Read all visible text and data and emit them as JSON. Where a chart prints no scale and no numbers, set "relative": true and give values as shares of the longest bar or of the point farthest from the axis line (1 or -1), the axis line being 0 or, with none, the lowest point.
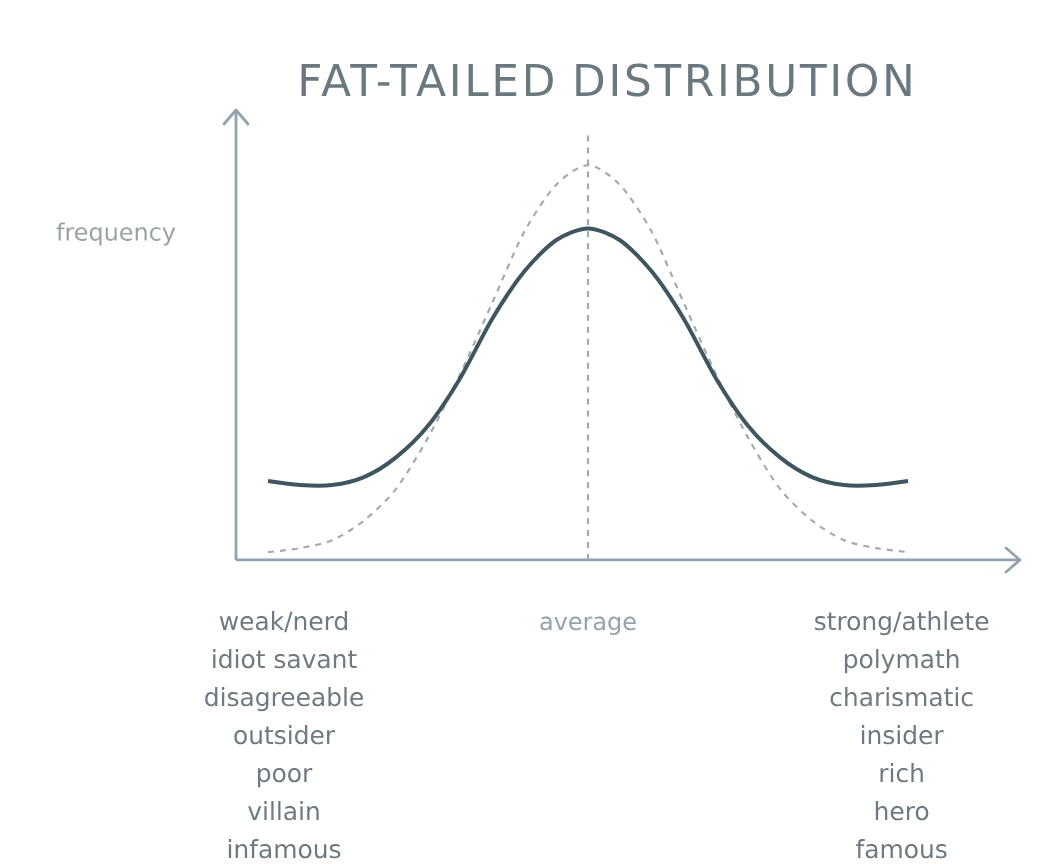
{
  "chart_data": {
    "type": "line",
    "title": "FAT-TAILED DISTRIBUTION",
    "ylabel": "frequency",
    "relative": true,
    "categories": [
      null,
      null,
      null,
      null,
      null,
      null,
      null,
      null,
      null,
      null,
      null,
      null,
      null,
      null,
      null,
      null,
      null,
      null,
      null,
      null,
      null
    ],
    "series": [
      {
        "color": "#a3abb0",
        "line_style": "dashed",
        "values": [
          0.02,
          0.03,
          0.05,
          0.1,
          0.18,
          0.31,
          0.47,
          0.65,
          0.83,
          0.95,
          1,
          0.95,
          0.83,
          0.65,
          0.47,
          0.31,
          0.18,
          0.1,
          0.05,
          0.03,
          0.02
        ]
      },
      {
        "color": "#3f5661",
        "line_style": "solid",
        "values": [
          0.2,
          0.19,
          0.19,
          0.21,
          0.26,
          0.34,
          0.46,
          0.61,
          0.73,
          0.81,
          0.84,
          0.81,
          0.73,
          0.61,
          0.46,
          0.34,
          0.26,
          0.21,
          0.19,
          0.19,
          0.2
        ]
      }
    ],
    "annotations": [
      "average",
      "weak/nerd",
      "idiot savant",
      "disagreeable",
      "outsider",
      "poor",
      "villain",
      "infamous",
      "strong/athlete",
      "polymath",
      "charismatic",
      "insider",
      "rich",
      "hero",
      "famous"
    ]
  }
}
